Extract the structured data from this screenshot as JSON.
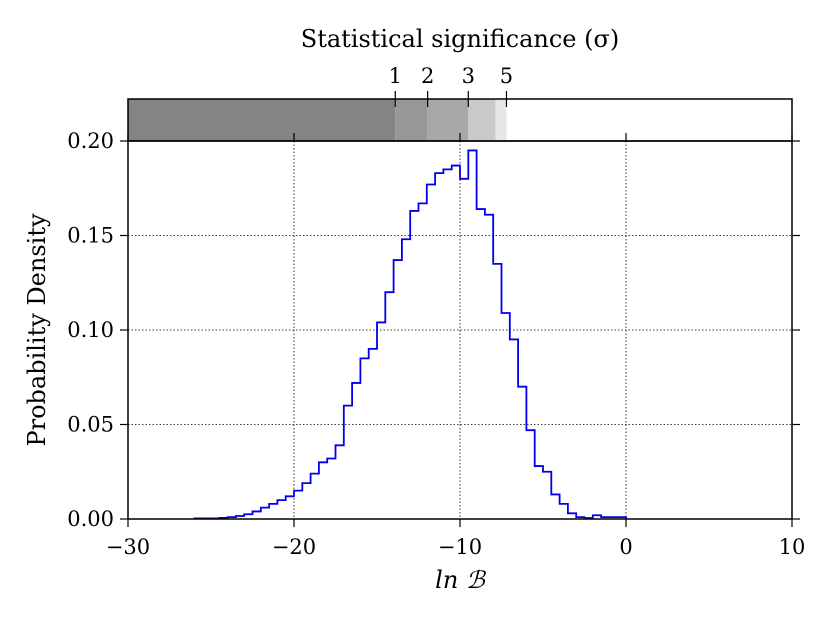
{
  "chart_data": {
    "type": "histogram",
    "title": "",
    "top_axis_label": "Statistical significance (σ)",
    "xlabel": "ln ℬ",
    "ylabel": "Probability Density",
    "xlim": [
      -30,
      10
    ],
    "ylim": [
      0,
      0.2
    ],
    "x_ticks": [
      -30,
      -20,
      -10,
      0,
      10
    ],
    "x_tick_labels": [
      "−30",
      "−20",
      "−10",
      "0",
      "10"
    ],
    "y_ticks": [
      0,
      0.05,
      0.1,
      0.15,
      0.2
    ],
    "y_tick_labels": [
      "0.00",
      "0.05",
      "0.10",
      "0.15",
      "0.20"
    ],
    "grid": true,
    "line_color": "#0000ee",
    "bin_width": 0.5,
    "bins_start": -26,
    "density": [
      0.0003,
      0.0003,
      0.0003,
      0.0006,
      0.001,
      0.0016,
      0.0025,
      0.004,
      0.006,
      0.008,
      0.01,
      0.012,
      0.015,
      0.019,
      0.024,
      0.03,
      0.032,
      0.039,
      0.06,
      0.072,
      0.085,
      0.09,
      0.104,
      0.12,
      0.137,
      0.148,
      0.163,
      0.167,
      0.177,
      0.183,
      0.185,
      0.187,
      0.18,
      0.195,
      0.164,
      0.161,
      0.135,
      0.109,
      0.095,
      0.07,
      0.047,
      0.028,
      0.025,
      0.013,
      0.008,
      0.003,
      0.001,
      0.0005,
      0.002,
      0.001,
      0.001,
      0.001
    ],
    "significance_bar": {
      "bands": [
        {
          "x_start": -30,
          "x_end": -13.9,
          "color": "#848484"
        },
        {
          "x_start": -13.9,
          "x_end": -11.95,
          "color": "#979797"
        },
        {
          "x_start": -11.95,
          "x_end": -9.5,
          "color": "#a8a8a8"
        },
        {
          "x_start": -9.5,
          "x_end": -7.85,
          "color": "#c9c9c9"
        },
        {
          "x_start": -7.85,
          "x_end": -7.2,
          "color": "#e6e6e6"
        },
        {
          "x_start": -7.2,
          "x_end": 10,
          "color": "#ffffff"
        }
      ],
      "ticks": [
        {
          "label": "1",
          "x": -13.9
        },
        {
          "label": "2",
          "x": -11.95
        },
        {
          "label": "3",
          "x": -9.5
        },
        {
          "label": "5",
          "x": -7.2
        }
      ]
    }
  }
}
